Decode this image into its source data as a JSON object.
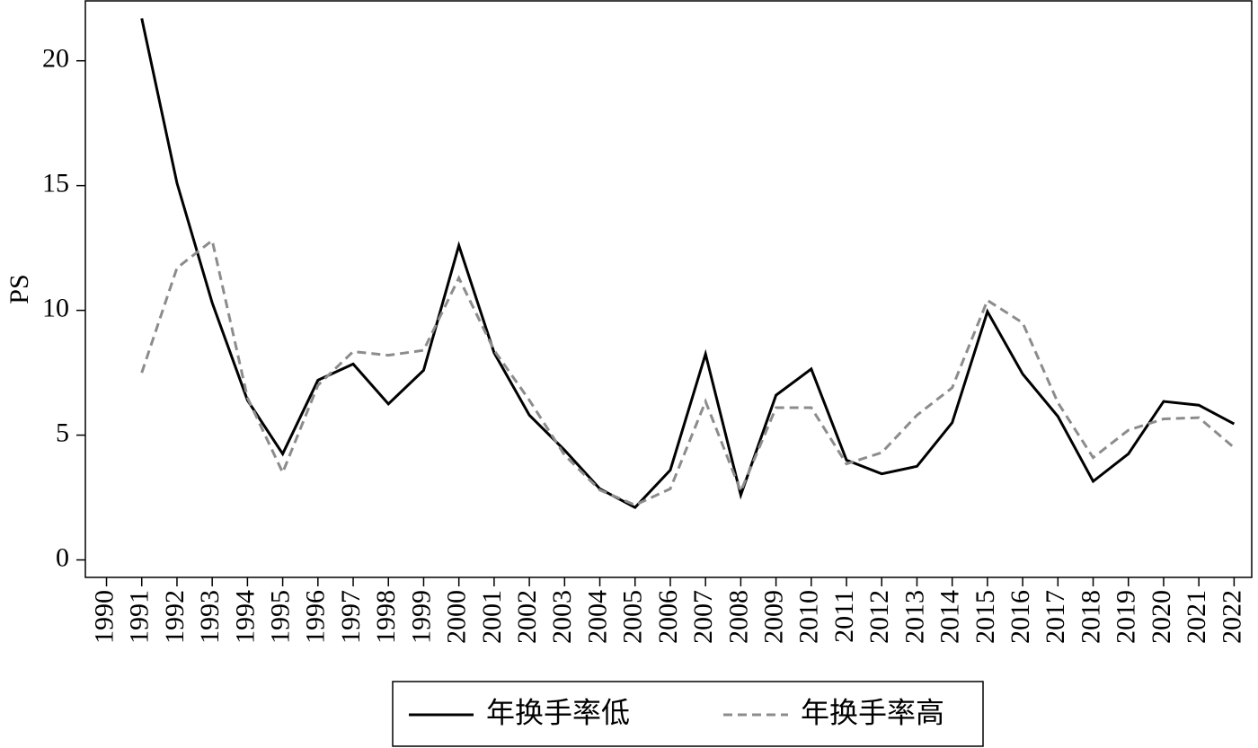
{
  "chart_data": {
    "type": "line",
    "ylabel": "PS",
    "x": [
      1991,
      1992,
      1993,
      1994,
      1995,
      1996,
      1997,
      1998,
      1999,
      2000,
      2001,
      2002,
      2003,
      2004,
      2005,
      2006,
      2007,
      2008,
      2009,
      2010,
      2011,
      2012,
      2013,
      2014,
      2015,
      2016,
      2017,
      2018,
      2019,
      2020,
      2021,
      2022
    ],
    "series": [
      {
        "name": "年换手率低",
        "color": "#000000",
        "dash": "solid",
        "values": [
          21.7,
          15.1,
          10.3,
          6.4,
          4.25,
          7.2,
          7.85,
          6.25,
          7.6,
          12.6,
          8.3,
          5.8,
          4.4,
          2.85,
          2.1,
          3.6,
          8.25,
          2.6,
          6.6,
          7.65,
          4.0,
          3.45,
          3.75,
          5.5,
          9.95,
          7.45,
          5.75,
          3.15,
          4.25,
          6.35,
          6.2,
          5.45
        ]
      },
      {
        "name": "年换手率高",
        "color": "#8c8c8c",
        "dash": "dashed",
        "values": [
          7.5,
          11.7,
          12.8,
          6.5,
          3.5,
          7.0,
          8.35,
          8.2,
          8.4,
          11.3,
          8.4,
          6.4,
          4.2,
          2.8,
          2.2,
          2.85,
          6.35,
          2.75,
          6.1,
          6.1,
          3.85,
          4.3,
          5.8,
          6.9,
          10.4,
          9.5,
          6.3,
          4.1,
          5.2,
          5.65,
          5.7,
          4.5
        ]
      }
    ],
    "xlim": [
      1989.4,
      2022.5
    ],
    "xticks": [
      1990,
      1991,
      1992,
      1993,
      1994,
      1995,
      1996,
      1997,
      1998,
      1999,
      2000,
      2001,
      2002,
      2003,
      2004,
      2005,
      2006,
      2007,
      2008,
      2009,
      2010,
      2011,
      2012,
      2013,
      2014,
      2015,
      2016,
      2017,
      2018,
      2019,
      2020,
      2021,
      2022
    ],
    "ylim": [
      -0.7,
      22.4
    ],
    "yticks": [
      0,
      5,
      10,
      15,
      20
    ],
    "legend": "bottom"
  }
}
